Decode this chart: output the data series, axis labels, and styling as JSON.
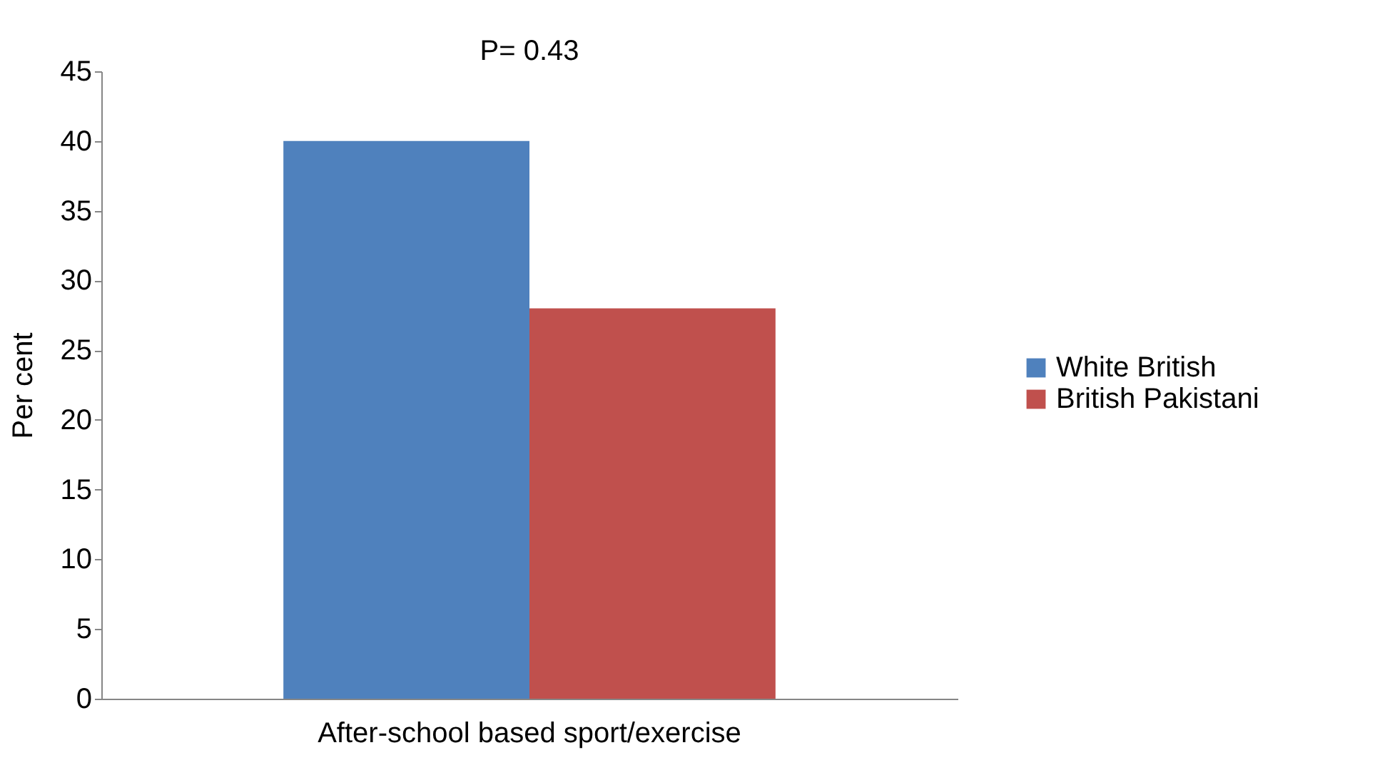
{
  "chart_data": {
    "type": "bar",
    "ylabel": "Per cent",
    "categories": [
      "After-school based sport/exercise"
    ],
    "series": [
      {
        "name": "White British",
        "color": "#4f81bd",
        "values": [
          40
        ]
      },
      {
        "name": "British Pakistani",
        "color": "#c0504d",
        "values": [
          28
        ]
      }
    ],
    "ylim": [
      0,
      45
    ],
    "yticks": [
      0,
      5,
      10,
      15,
      20,
      25,
      30,
      35,
      40,
      45
    ],
    "annotations": [
      "P= 0.43"
    ],
    "legend": "right"
  }
}
